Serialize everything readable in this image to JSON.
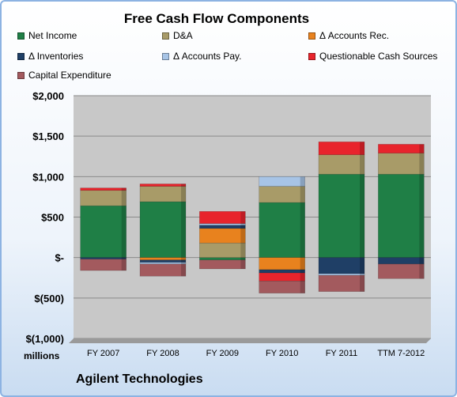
{
  "chart_data": {
    "type": "bar",
    "stacked": true,
    "title": "Free Cash Flow Components",
    "categories": [
      "FY 2007",
      "FY 2008",
      "FY 2009",
      "FY 2010",
      "FY 2011",
      "TTM 7-2012"
    ],
    "ylim": [
      -1000,
      2000
    ],
    "yticks": [
      2000,
      1500,
      1000,
      500,
      0,
      -500,
      -1000
    ],
    "ytick_labels": [
      "$2,000",
      "$1,500",
      "$1,000",
      "$500",
      "$-",
      "$(500)",
      "$(1,000)"
    ],
    "ylabel": "millions",
    "grid": true,
    "legend": "top",
    "series": [
      {
        "name": "Net Income",
        "color": "#1f7f46",
        "values": [
          640,
          690,
          -30,
          680,
          1030,
          1030
        ]
      },
      {
        "name": "D&A",
        "color": "#a89b68",
        "values": [
          190,
          190,
          180,
          200,
          240,
          260
        ]
      },
      {
        "name": "Δ Accounts Rec.",
        "color": "#e8821e",
        "values": [
          0,
          -30,
          180,
          -150,
          0,
          0
        ]
      },
      {
        "name": "Δ Inventories",
        "color": "#1f3f66",
        "values": [
          -20,
          -30,
          40,
          -40,
          -200,
          -80
        ]
      },
      {
        "name": "Δ Accounts Pay.",
        "color": "#a7c4e6",
        "values": [
          0,
          -20,
          20,
          120,
          -20,
          0
        ]
      },
      {
        "name": "Questionable Cash Sources",
        "color": "#e8242c",
        "values": [
          30,
          30,
          150,
          -100,
          160,
          110
        ]
      },
      {
        "name": "Capital Expenditure",
        "color": "#a35a5e",
        "values": [
          -140,
          -150,
          -110,
          -150,
          -200,
          -180
        ]
      }
    ]
  },
  "footer": {
    "company": "Agilent Technologies"
  }
}
